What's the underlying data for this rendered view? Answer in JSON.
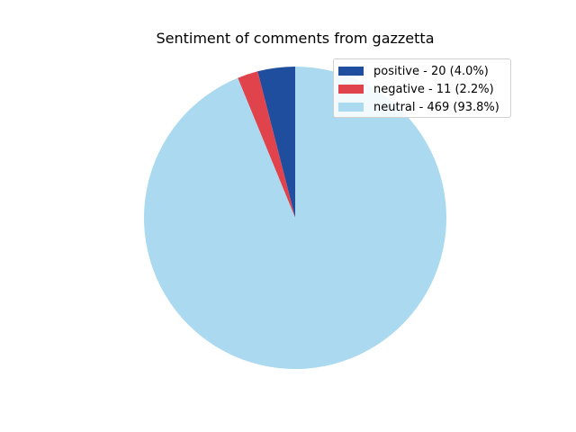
{
  "chart_data": {
    "type": "pie",
    "title": "Sentiment of comments from gazzetta",
    "legend_position": "top-right",
    "slices": [
      {
        "name": "positive",
        "value": 20,
        "percent": 4.0,
        "color": "#1f4e9e",
        "legend_label": "positive - 20 (4.0%)"
      },
      {
        "name": "negative",
        "value": 11,
        "percent": 2.2,
        "color": "#e0434b",
        "legend_label": "negative - 11 (2.2%)"
      },
      {
        "name": "neutral",
        "value": 469,
        "percent": 93.8,
        "color": "#abdaf0",
        "legend_label": "neutral - 469 (93.8%)"
      }
    ]
  }
}
